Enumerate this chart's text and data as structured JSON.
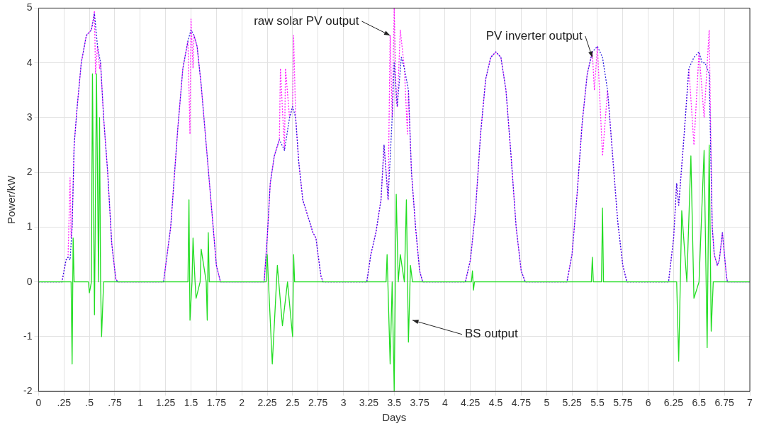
{
  "chart_data": {
    "type": "line",
    "xlabel": "Days",
    "ylabel": "Power/kW",
    "xlim": [
      0,
      7
    ],
    "ylim": [
      -2,
      5
    ],
    "xticks": [
      0,
      {
        "value": 0.25,
        "label": ".25"
      },
      {
        "value": 0.5,
        "label": ".5"
      },
      {
        "value": 0.75,
        "label": ".75"
      },
      1,
      1.25,
      1.5,
      1.75,
      2,
      2.25,
      2.5,
      2.75,
      3,
      3.25,
      3.5,
      3.75,
      4,
      4.25,
      4.5,
      4.75,
      5,
      5.25,
      5.5,
      5.75,
      6,
      6.25,
      6.5,
      6.75,
      7
    ],
    "yticks": [
      -2,
      -1,
      0,
      1,
      2,
      3,
      4,
      5
    ],
    "grid": true,
    "legend": false,
    "marker": "none",
    "series": [
      {
        "color": "#ff20ff",
        "line_style": "dotted",
        "x": [
          0,
          0.23,
          0.27,
          0.29,
          0.31,
          0.32,
          0.33,
          0.35,
          0.38,
          0.42,
          0.47,
          0.52,
          0.55,
          0.56,
          0.58,
          0.6,
          0.61,
          0.64,
          0.68,
          0.72,
          0.76,
          0.78,
          1.23,
          1.3,
          1.37,
          1.42,
          1.47,
          1.49,
          1.5,
          1.52,
          1.53,
          1.56,
          1.6,
          1.65,
          1.7,
          1.75,
          1.79,
          2.22,
          2.25,
          2.28,
          2.32,
          2.37,
          2.38,
          2.42,
          2.43,
          2.47,
          2.5,
          2.51,
          2.53,
          2.56,
          2.6,
          2.65,
          2.7,
          2.73,
          2.75,
          2.78,
          2.8,
          3.23,
          3.27,
          3.32,
          3.37,
          3.4,
          3.44,
          3.46,
          3.48,
          3.5,
          3.52,
          3.53,
          3.56,
          3.6,
          3.63,
          3.64,
          3.67,
          3.71,
          3.75,
          3.78,
          4.2,
          4.25,
          4.3,
          4.35,
          4.4,
          4.45,
          4.5,
          4.55,
          4.6,
          4.65,
          4.7,
          4.75,
          4.79,
          5.2,
          5.25,
          5.3,
          5.35,
          5.4,
          5.45,
          5.47,
          5.5,
          5.55,
          5.6,
          5.65,
          5.7,
          5.75,
          5.79,
          6.2,
          6.25,
          6.28,
          6.3,
          6.35,
          6.4,
          6.45,
          6.5,
          6.55,
          6.6,
          6.63,
          6.65,
          6.68,
          6.7,
          6.73,
          6.77,
          6.78,
          7
        ],
        "values": [
          0,
          0,
          0.4,
          0.45,
          1.9,
          0.8,
          1.0,
          2.5,
          3.2,
          4.0,
          4.5,
          4.6,
          4.95,
          3.8,
          4.3,
          3.9,
          4.0,
          3.0,
          2.0,
          0.7,
          0.05,
          0,
          0,
          1.0,
          2.8,
          3.9,
          4.4,
          2.7,
          4.8,
          3.9,
          4.5,
          4.3,
          3.6,
          2.5,
          1.4,
          0.3,
          0,
          0,
          0.8,
          1.8,
          2.3,
          2.6,
          3.9,
          2.4,
          3.9,
          3.0,
          3.2,
          4.5,
          3.0,
          2.2,
          1.5,
          1.2,
          0.9,
          0.8,
          0.5,
          0.1,
          0,
          0,
          0.5,
          0.9,
          1.5,
          2.5,
          1.5,
          4.5,
          3.0,
          5.0,
          3.3,
          3.2,
          4.6,
          3.9,
          2.7,
          3.5,
          2.0,
          1.0,
          0.2,
          0,
          0,
          0.4,
          1.3,
          2.7,
          3.7,
          4.1,
          4.2,
          4.1,
          3.5,
          2.3,
          1.0,
          0.2,
          0,
          0,
          0.5,
          1.6,
          2.9,
          3.8,
          4.2,
          3.5,
          4.3,
          2.3,
          3.5,
          2.3,
          1.1,
          0.3,
          0,
          0,
          0.8,
          1.8,
          1.4,
          2.6,
          3.9,
          2.5,
          4.2,
          3.0,
          4.6,
          1.0,
          0.5,
          0.3,
          0.4,
          0.9,
          0.1,
          0,
          0
        ]
      },
      {
        "color": "#2a20e0",
        "line_style": "dotted",
        "x": [
          0,
          0.23,
          0.27,
          0.29,
          0.31,
          0.33,
          0.35,
          0.38,
          0.42,
          0.47,
          0.52,
          0.55,
          0.58,
          0.61,
          0.64,
          0.68,
          0.72,
          0.76,
          0.78,
          1.23,
          1.3,
          1.37,
          1.42,
          1.47,
          1.5,
          1.53,
          1.56,
          1.6,
          1.65,
          1.7,
          1.75,
          1.79,
          2.22,
          2.25,
          2.28,
          2.32,
          2.37,
          2.42,
          2.47,
          2.5,
          2.53,
          2.56,
          2.6,
          2.65,
          2.7,
          2.73,
          2.75,
          2.78,
          2.8,
          3.23,
          3.27,
          3.32,
          3.37,
          3.4,
          3.44,
          3.48,
          3.5,
          3.53,
          3.57,
          3.6,
          3.64,
          3.67,
          3.71,
          3.75,
          3.78,
          4.2,
          4.25,
          4.3,
          4.35,
          4.4,
          4.45,
          4.5,
          4.55,
          4.6,
          4.65,
          4.7,
          4.75,
          4.79,
          5.2,
          5.25,
          5.3,
          5.35,
          5.4,
          5.45,
          5.5,
          5.55,
          5.6,
          5.65,
          5.7,
          5.75,
          5.79,
          6.2,
          6.25,
          6.28,
          6.3,
          6.35,
          6.4,
          6.45,
          6.5,
          6.53,
          6.56,
          6.6,
          6.63,
          6.65,
          6.68,
          6.7,
          6.73,
          6.77,
          6.78,
          7
        ],
        "values": [
          0,
          0,
          0.4,
          0.45,
          0.4,
          1.0,
          2.5,
          3.2,
          4.0,
          4.5,
          4.6,
          4.9,
          4.3,
          4.0,
          3.0,
          2.0,
          0.7,
          0.05,
          0,
          0,
          1.0,
          2.8,
          3.9,
          4.4,
          4.6,
          4.5,
          4.3,
          3.6,
          2.5,
          1.4,
          0.3,
          0,
          0,
          0.8,
          1.8,
          2.3,
          2.6,
          2.4,
          3.0,
          3.2,
          3.0,
          2.2,
          1.5,
          1.2,
          0.9,
          0.8,
          0.5,
          0.1,
          0,
          0,
          0.5,
          0.9,
          1.5,
          2.5,
          1.5,
          3.0,
          4.0,
          3.2,
          4.1,
          3.9,
          3.5,
          2.0,
          1.0,
          0.2,
          0,
          0,
          0.4,
          1.3,
          2.7,
          3.7,
          4.1,
          4.2,
          4.1,
          3.5,
          2.3,
          1.0,
          0.2,
          0,
          0,
          0.5,
          1.6,
          2.9,
          3.8,
          4.2,
          4.3,
          4.1,
          3.5,
          2.3,
          1.1,
          0.3,
          0,
          0,
          0.8,
          1.8,
          1.4,
          2.6,
          3.9,
          4.1,
          4.2,
          4.0,
          4.0,
          3.8,
          1.0,
          0.5,
          0.3,
          0.4,
          0.9,
          0.1,
          0,
          0
        ]
      },
      {
        "color": "#22dd22",
        "line_style": "solid",
        "x": [
          0,
          0.32,
          0.33,
          0.34,
          0.35,
          0.49,
          0.5,
          0.52,
          0.53,
          0.55,
          0.57,
          0.59,
          0.6,
          0.61,
          0.62,
          0.64,
          1.47,
          1.48,
          1.49,
          1.51,
          1.52,
          1.54,
          1.55,
          1.59,
          1.6,
          1.65,
          1.66,
          1.67,
          1.68,
          2.24,
          2.25,
          2.3,
          2.35,
          2.4,
          2.45,
          2.5,
          2.51,
          2.52,
          3.42,
          3.43,
          3.46,
          3.48,
          3.5,
          3.52,
          3.54,
          3.56,
          3.6,
          3.62,
          3.64,
          3.66,
          3.68,
          4.26,
          4.27,
          4.28,
          4.29,
          5.44,
          5.45,
          5.46,
          5.54,
          5.55,
          5.56,
          6.28,
          6.3,
          6.33,
          6.38,
          6.42,
          6.45,
          6.5,
          6.55,
          6.58,
          6.6,
          6.62,
          6.64,
          7
        ],
        "values": [
          0,
          0,
          -1.5,
          0.8,
          0,
          0,
          -0.2,
          0,
          3.8,
          -0.6,
          3.8,
          0,
          3.0,
          0,
          -1.0,
          0,
          0,
          1.5,
          -0.7,
          0,
          0.8,
          0,
          -0.3,
          0,
          0.6,
          0,
          -0.7,
          0.9,
          0,
          0,
          0.5,
          -1.5,
          0.3,
          -0.8,
          0,
          -1.0,
          0.5,
          0,
          0,
          0.5,
          -1.5,
          0,
          -2.0,
          1.6,
          0,
          0.5,
          0,
          1.5,
          -1.1,
          0.3,
          0,
          0,
          0.2,
          -0.15,
          0,
          0,
          0.45,
          0,
          0,
          1.35,
          0,
          0,
          -1.45,
          1.3,
          0,
          2.3,
          -0.3,
          0,
          2.4,
          -1.2,
          2.5,
          -0.9,
          0,
          0
        ]
      }
    ],
    "annotations": [
      {
        "text": "raw solar PV output",
        "x": 3.46,
        "y": 4.5
      },
      {
        "text": "PV inverter output",
        "x": 5.45,
        "y": 4.1
      },
      {
        "text": "BS output",
        "x": 3.68,
        "y": -0.7
      }
    ]
  }
}
